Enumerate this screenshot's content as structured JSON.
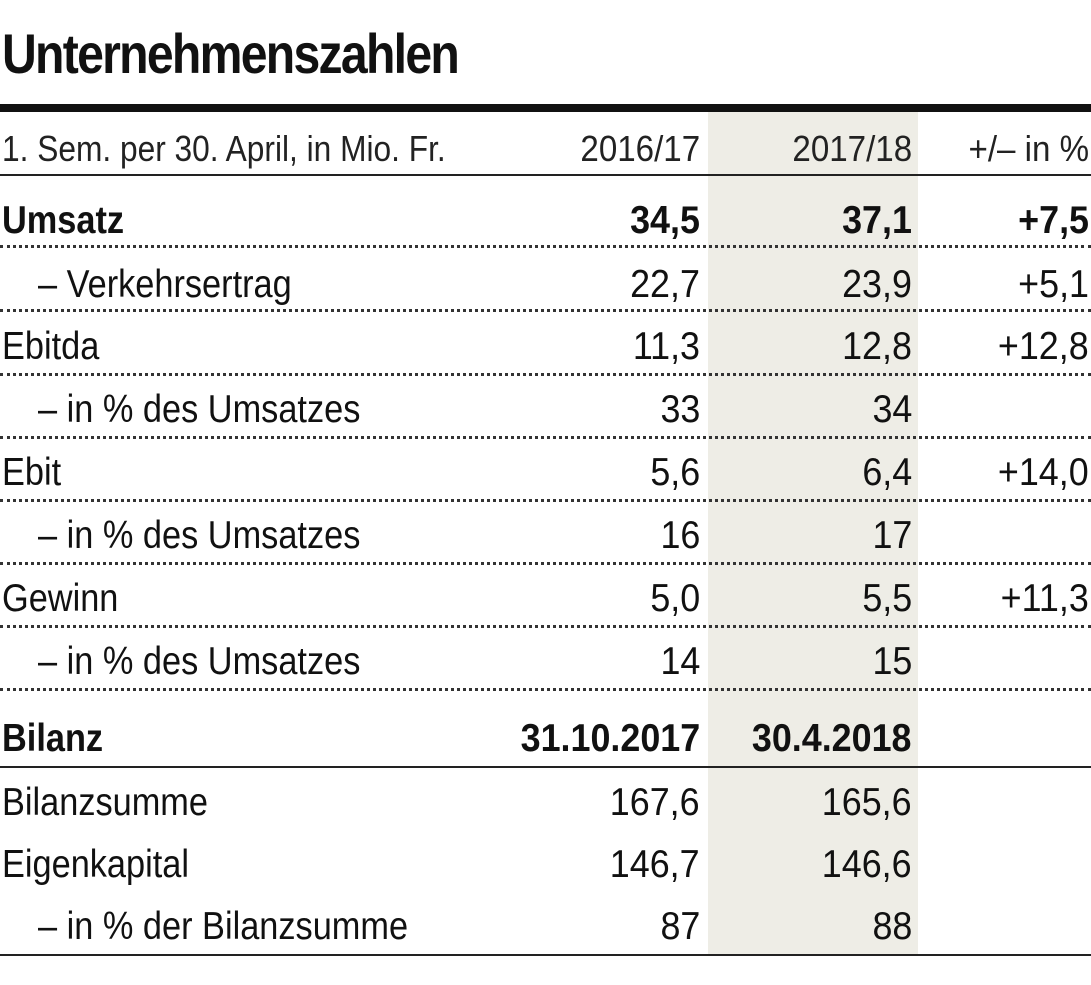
{
  "title": "Unternehmenszahlen",
  "header": {
    "label": "1. Sem. per 30. April, in Mio. Fr.",
    "col1": "2016/17",
    "col2": "2017/18",
    "col3": "+/– in %"
  },
  "rows": [
    {
      "label": "Umsatz",
      "c1": "34,5",
      "c2": "37,1",
      "c3": "+7,5"
    },
    {
      "label": "– Verkehrsertrag",
      "c1": "22,7",
      "c2": "23,9",
      "c3": "+5,1"
    },
    {
      "label": "Ebitda",
      "c1": "11,3",
      "c2": "12,8",
      "c3": "+12,8"
    },
    {
      "label": "– in % des Umsatzes",
      "c1": "33",
      "c2": "34",
      "c3": ""
    },
    {
      "label": "Ebit",
      "c1": "5,6",
      "c2": "6,4",
      "c3": "+14,0"
    },
    {
      "label": "– in % des Umsatzes",
      "c1": "16",
      "c2": "17",
      "c3": ""
    },
    {
      "label": "Gewinn",
      "c1": "5,0",
      "c2": "5,5",
      "c3": "+11,3"
    },
    {
      "label": "– in % des Umsatzes",
      "c1": "14",
      "c2": "15",
      "c3": ""
    }
  ],
  "bilanz": {
    "label": "Bilanz",
    "c1": "31.10.2017",
    "c2": "30.4.2018"
  },
  "bilanz_rows": [
    {
      "label": "Bilanzsumme",
      "c1": "167,6",
      "c2": "165,6"
    },
    {
      "label": "Eigenkapital",
      "c1": "146,7",
      "c2": "146,6"
    },
    {
      "label": "– in % der Bilanzsumme",
      "c1": "87",
      "c2": "88"
    }
  ],
  "colors": {
    "highlight_column": "#eeede6",
    "text": "#111111"
  }
}
